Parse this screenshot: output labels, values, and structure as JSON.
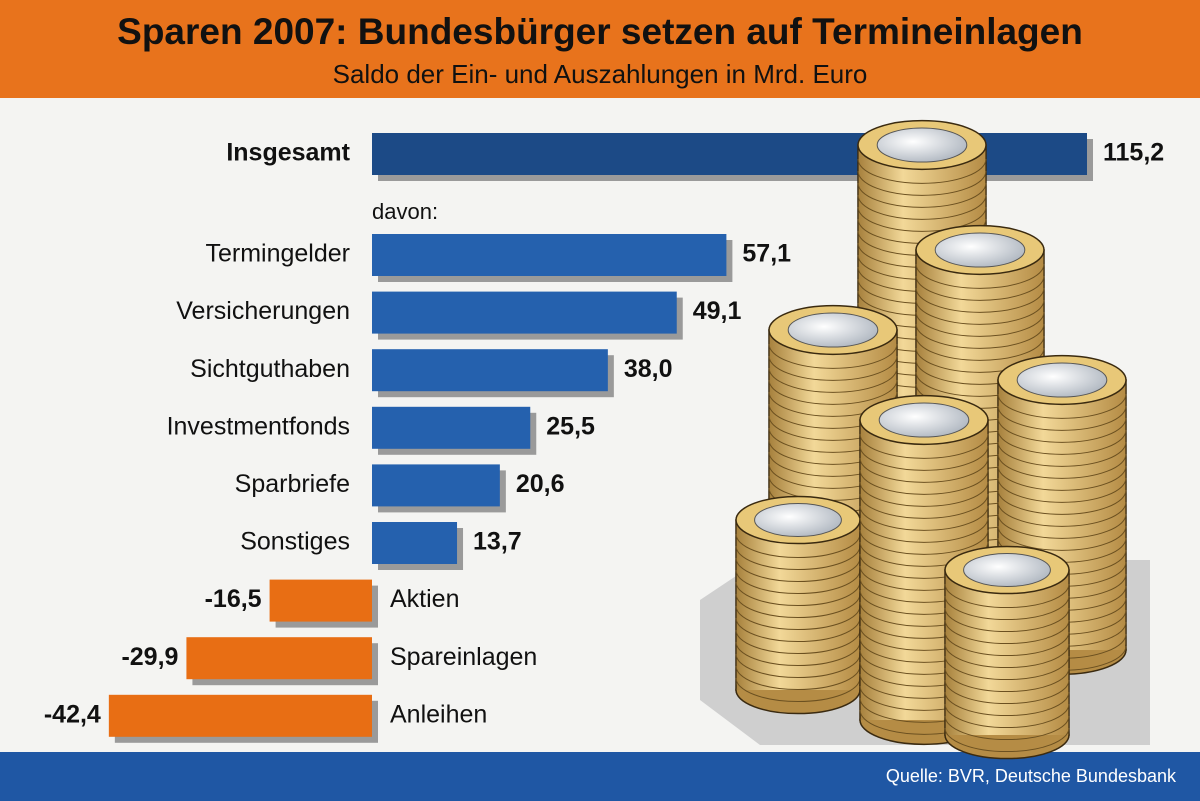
{
  "chart_data": {
    "type": "bar",
    "title": "Sparen 2007: Bundesbürger setzen auf Termineinlagen",
    "subtitle": "Saldo der Ein- und Auszahlungen in Mrd. Euro",
    "annotation": "davon:",
    "source": "Quelle: BVR, Deutsche Bundesbank",
    "categories": [
      "Insgesamt",
      "Termingelder",
      "Versicherungen",
      "Sichtguthaben",
      "Investmentfonds",
      "Sparbriefe",
      "Sonstiges",
      "Aktien",
      "Spareinlagen",
      "Anleihen"
    ],
    "values": [
      115.2,
      57.1,
      49.1,
      38.0,
      25.5,
      20.6,
      13.7,
      -16.5,
      -29.9,
      -42.4
    ],
    "value_labels": [
      "115,2",
      "57,1",
      "49,1",
      "38,0",
      "25,5",
      "20,6",
      "13,7",
      "-16,5",
      "-29,9",
      "-42,4"
    ],
    "colors": [
      "#1c4a86",
      "#2561ae",
      "#2561ae",
      "#2561ae",
      "#2561ae",
      "#2561ae",
      "#2561ae",
      "#e86e14",
      "#e86e14",
      "#e86e14"
    ]
  }
}
